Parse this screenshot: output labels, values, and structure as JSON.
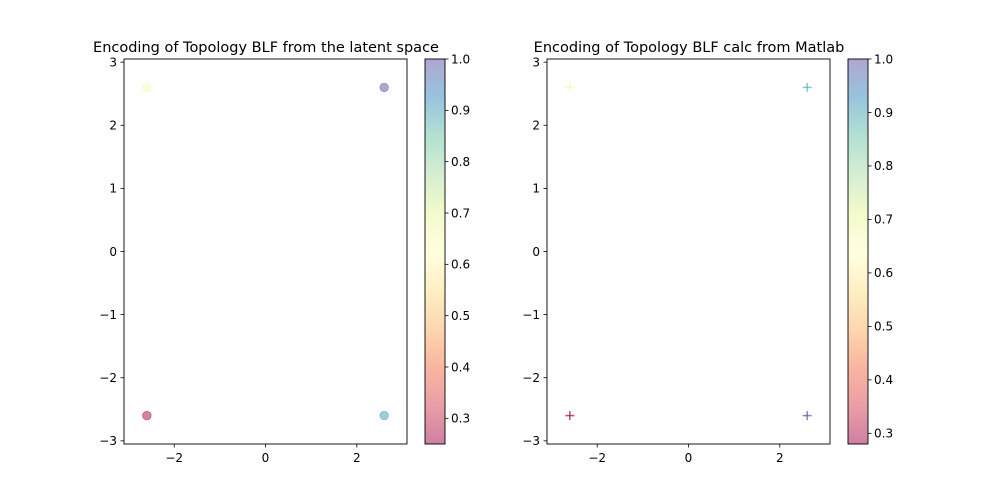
{
  "chart_data": [
    {
      "type": "scatter",
      "title": "Encoding of Topology BLF from the latent space",
      "marker": "circle",
      "xlim": [
        -3.1,
        3.1
      ],
      "ylim": [
        -3.05,
        3.05
      ],
      "xticks": [
        -2,
        0,
        2
      ],
      "xtick_labels": [
        "−2",
        "0",
        "2"
      ],
      "yticks": [
        -3,
        -2,
        -1,
        0,
        1,
        2,
        3
      ],
      "ytick_labels": [
        "−3",
        "−2",
        "−1",
        "0",
        "1",
        "2",
        "3"
      ],
      "points": [
        {
          "x": -2.6,
          "y": 2.6,
          "c": 0.65
        },
        {
          "x": 2.6,
          "y": 2.6,
          "c": 1.0
        },
        {
          "x": -2.6,
          "y": -2.6,
          "c": 0.26
        },
        {
          "x": 2.6,
          "y": -2.6,
          "c": 0.9
        }
      ],
      "colorbar": {
        "min": 0.25,
        "max": 1.0,
        "ticks": [
          0.3,
          0.4,
          0.5,
          0.6,
          0.7,
          0.8,
          0.9,
          1.0
        ],
        "tick_labels": [
          "0.3",
          "0.4",
          "0.5",
          "0.6",
          "0.7",
          "0.8",
          "0.9",
          "1.0"
        ]
      }
    },
    {
      "type": "scatter",
      "title": "Encoding of Topology BLF calc from Matlab",
      "marker": "plus",
      "xlim": [
        -3.1,
        3.1
      ],
      "ylim": [
        -3.05,
        3.05
      ],
      "xticks": [
        -2,
        0,
        2
      ],
      "xtick_labels": [
        "−2",
        "0",
        "2"
      ],
      "yticks": [
        -3,
        -2,
        -1,
        0,
        1,
        2,
        3
      ],
      "ytick_labels": [
        "−3",
        "−2",
        "−1",
        "0",
        "1",
        "2",
        "3"
      ],
      "points": [
        {
          "x": -2.6,
          "y": 2.6,
          "c": 0.68
        },
        {
          "x": 2.6,
          "y": 2.6,
          "c": 0.88
        },
        {
          "x": -2.6,
          "y": -2.6,
          "c": 0.28
        },
        {
          "x": 2.6,
          "y": -2.6,
          "c": 1.0
        }
      ],
      "colorbar": {
        "min": 0.28,
        "max": 1.0,
        "ticks": [
          0.3,
          0.4,
          0.5,
          0.6,
          0.7,
          0.8,
          0.9,
          1.0
        ],
        "tick_labels": [
          "0.3",
          "0.4",
          "0.5",
          "0.6",
          "0.7",
          "0.8",
          "0.9",
          "1.0"
        ]
      }
    }
  ],
  "colormap": {
    "name": "Spectral",
    "alpha": 0.5,
    "stops": [
      "#9e0142",
      "#d53e4f",
      "#f46d43",
      "#fdae61",
      "#fee08b",
      "#ffffbf",
      "#e6f598",
      "#abdda4",
      "#66c2a5",
      "#3288bd",
      "#5e4fa2"
    ]
  }
}
